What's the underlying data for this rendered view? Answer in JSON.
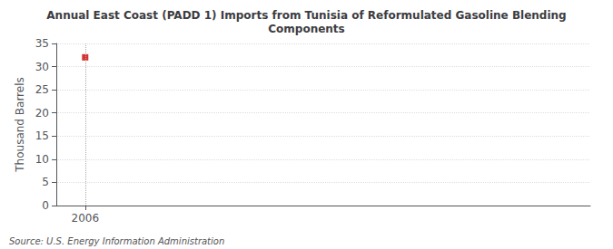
{
  "chart_data": {
    "type": "scatter",
    "title": "Annual East Coast (PADD 1) Imports from Tunisia of Reformulated Gasoline Blending\nComponents",
    "ylabel": "Thousand Barrels",
    "annotations": [
      "Source: U.S. Energy Information Administration"
    ],
    "x": [
      2006
    ],
    "values": [
      32
    ],
    "color": "#cc0000",
    "marker": "square",
    "xlim": [
      2005.4,
      2016.5
    ],
    "xticks": [
      2006
    ],
    "ylim": [
      0,
      35
    ],
    "yticks": [
      0,
      5,
      10,
      15,
      20,
      25,
      30,
      35
    ],
    "grid": true
  }
}
